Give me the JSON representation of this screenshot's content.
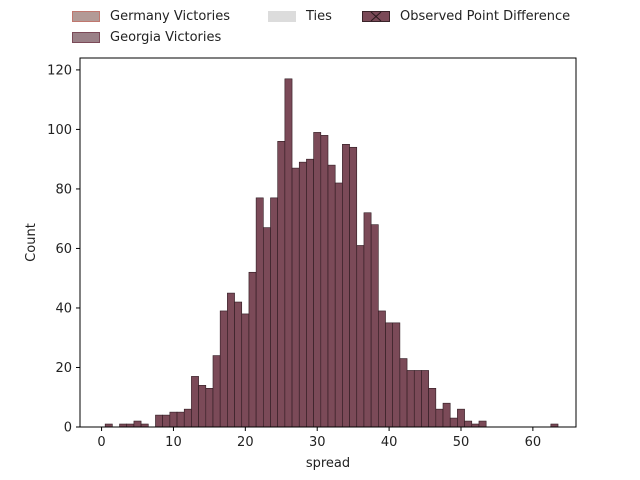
{
  "chart_data": {
    "type": "bar",
    "title": "",
    "xlabel": "spread",
    "ylabel": "Count",
    "xlim": [
      -3,
      66
    ],
    "ylim": [
      0,
      124
    ],
    "x_ticks": [
      "0",
      "10",
      "20",
      "30",
      "40",
      "50",
      "60"
    ],
    "y_ticks": [
      "0",
      "20",
      "40",
      "60",
      "80",
      "100",
      "120"
    ],
    "bin_width": 1,
    "legend": {
      "placement": "top-center",
      "entries": [
        {
          "label": "Germany Victories",
          "color": "#b39a96"
        },
        {
          "label": "Georgia Victories",
          "color": "#9a8087"
        },
        {
          "label": "Ties",
          "color": "#dcdcdc"
        },
        {
          "label": "Observed Point Difference",
          "color": "#7b4a58"
        }
      ]
    },
    "bar_color": "#7b4a58",
    "series": [
      {
        "name": "Observed Point Difference",
        "bins": [
          0,
          1,
          2,
          3,
          4,
          5,
          6,
          7,
          8,
          9,
          10,
          11,
          12,
          13,
          14,
          15,
          16,
          17,
          18,
          19,
          20,
          21,
          22,
          23,
          24,
          25,
          26,
          27,
          28,
          29,
          30,
          31,
          32,
          33,
          34,
          35,
          36,
          37,
          38,
          39,
          40,
          41,
          42,
          43,
          44,
          45,
          46,
          47,
          48,
          49,
          50,
          51,
          52,
          53,
          54,
          55,
          56,
          57,
          58,
          59,
          60,
          61,
          62,
          63
        ],
        "values": [
          0,
          1,
          0,
          1,
          1,
          2,
          1,
          0,
          4,
          4,
          5,
          5,
          6,
          17,
          14,
          13,
          24,
          39,
          45,
          42,
          38,
          52,
          77,
          67,
          77,
          96,
          117,
          87,
          89,
          90,
          99,
          98,
          88,
          82,
          95,
          94,
          61,
          72,
          68,
          39,
          35,
          35,
          23,
          19,
          19,
          19,
          13,
          6,
          8,
          3,
          6,
          2,
          1,
          2,
          0,
          0,
          0,
          0,
          0,
          0,
          0,
          0,
          0,
          1
        ]
      }
    ]
  }
}
